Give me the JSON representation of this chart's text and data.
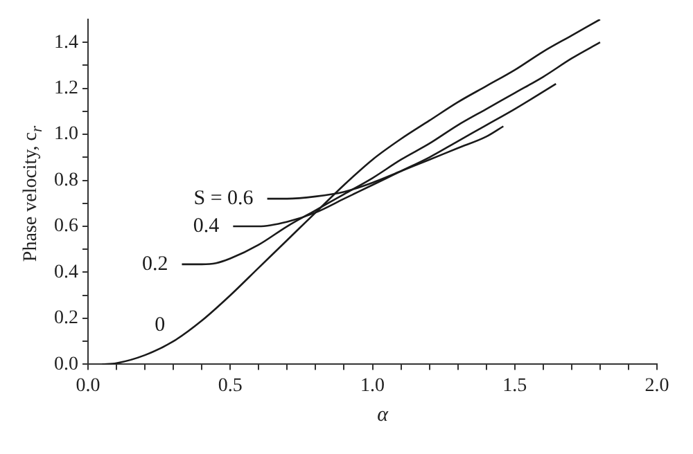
{
  "chart_data": {
    "type": "line",
    "xlabel": "α",
    "ylabel": "Phase velocity, c$_{r}$",
    "xlim": [
      0,
      2
    ],
    "ylim": [
      0,
      1.5
    ],
    "xticks": [
      {
        "value": 0,
        "label": "0.0"
      },
      {
        "value": 0.1,
        "label": null
      },
      {
        "value": 0.2,
        "label": null
      },
      {
        "value": 0.3,
        "label": null
      },
      {
        "value": 0.4,
        "label": null
      },
      {
        "value": 0.5,
        "label": "0.5"
      },
      {
        "value": 0.6,
        "label": null
      },
      {
        "value": 0.7,
        "label": null
      },
      {
        "value": 0.8,
        "label": null
      },
      {
        "value": 0.9,
        "label": null
      },
      {
        "value": 1,
        "label": "1.0"
      },
      {
        "value": 1.1,
        "label": null
      },
      {
        "value": 1.2,
        "label": null
      },
      {
        "value": 1.3,
        "label": null
      },
      {
        "value": 1.4,
        "label": null
      },
      {
        "value": 1.5,
        "label": "1.5"
      },
      {
        "value": 1.6,
        "label": null
      },
      {
        "value": 1.7,
        "label": null
      },
      {
        "value": 1.8,
        "label": null
      },
      {
        "value": 1.9,
        "label": null
      },
      {
        "value": 2,
        "label": "2.0"
      }
    ],
    "yticks": [
      {
        "value": 0,
        "label": "0.0"
      },
      {
        "value": 0.1,
        "label": null
      },
      {
        "value": 0.2,
        "label": "0.2"
      },
      {
        "value": 0.3,
        "label": null
      },
      {
        "value": 0.4,
        "label": "0.4"
      },
      {
        "value": 0.5,
        "label": null
      },
      {
        "value": 0.6,
        "label": "0.6"
      },
      {
        "value": 0.7,
        "label": null
      },
      {
        "value": 0.8,
        "label": "0.8"
      },
      {
        "value": 0.9,
        "label": null
      },
      {
        "value": 1,
        "label": "1.0"
      },
      {
        "value": 1.1,
        "label": null
      },
      {
        "value": 1.2,
        "label": "1.2"
      },
      {
        "value": 1.3,
        "label": null
      },
      {
        "value": 1.4,
        "label": "1.4"
      }
    ],
    "grid": false,
    "legend": false,
    "marker": "none",
    "line_style": "solid",
    "series": [
      {
        "name": "0",
        "color": "#1a1a1a",
        "x": [
          0.05,
          0.1,
          0.2,
          0.3,
          0.4,
          0.5,
          0.6,
          0.7,
          0.8,
          0.9,
          1.0,
          1.1,
          1.2,
          1.3,
          1.4,
          1.5,
          1.6,
          1.7,
          1.8
        ],
        "values": [
          0,
          0.005,
          0.04,
          0.1,
          0.19,
          0.3,
          0.42,
          0.54,
          0.66,
          0.78,
          0.89,
          0.98,
          1.06,
          1.14,
          1.21,
          1.28,
          1.36,
          1.43,
          1.5
        ]
      },
      {
        "name": "0.2",
        "color": "#1a1a1a",
        "x": [
          0.33,
          0.4,
          0.45,
          0.5,
          0.6,
          0.7,
          0.8,
          0.9,
          1.0,
          1.1,
          1.2,
          1.3,
          1.4,
          1.5,
          1.6,
          1.7,
          1.8
        ],
        "values": [
          0.435,
          0.435,
          0.44,
          0.46,
          0.52,
          0.6,
          0.67,
          0.74,
          0.81,
          0.89,
          0.96,
          1.04,
          1.11,
          1.18,
          1.25,
          1.33,
          1.4
        ]
      },
      {
        "name": "0.4",
        "color": "#1a1a1a",
        "x": [
          0.51,
          0.6,
          0.7,
          0.8,
          0.9,
          1.0,
          1.1,
          1.2,
          1.3,
          1.4,
          1.5,
          1.645
        ],
        "values": [
          0.6,
          0.6,
          0.62,
          0.66,
          0.72,
          0.78,
          0.84,
          0.9,
          0.97,
          1.04,
          1.11,
          1.22
        ]
      },
      {
        "name": "S = 0.6",
        "color": "#1a1a1a",
        "x": [
          0.63,
          0.7,
          0.8,
          0.9,
          1.0,
          1.1,
          1.2,
          1.3,
          1.4,
          1.46
        ],
        "values": [
          0.72,
          0.72,
          0.73,
          0.75,
          0.79,
          0.84,
          0.89,
          0.94,
          0.99,
          1.035
        ]
      }
    ]
  }
}
